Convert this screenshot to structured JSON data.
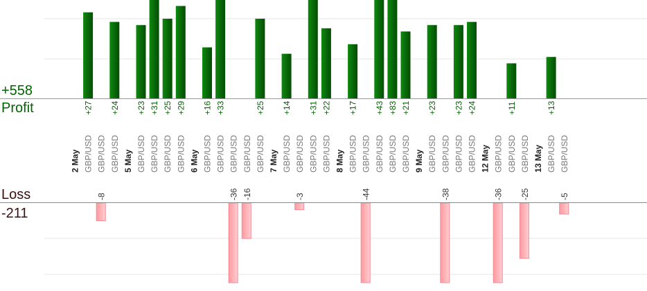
{
  "summary": {
    "profit_total": "+558",
    "profit_label": "Profit",
    "loss_label": "Loss",
    "loss_total": "-211"
  },
  "colors": {
    "profit_bar": "#0a6a0a",
    "profit_text": "#006400",
    "loss_bar": "#ffb3b8",
    "loss_text": "#333333",
    "date_text": "#222222",
    "pair_text": "#777777",
    "grid": "#e6e6e6",
    "axis": "#999999"
  },
  "chart_data": {
    "type": "bar",
    "series": [
      {
        "name": "Profit",
        "color": "#0a6a0a"
      },
      {
        "name": "Loss",
        "color": "#ffb3b8"
      }
    ],
    "categories": [
      {
        "label": "2 May",
        "kind": "date"
      },
      {
        "label": "GBP/USD",
        "kind": "trade",
        "profit": 27,
        "profit_label": "+27"
      },
      {
        "label": "GBP/USD",
        "kind": "trade",
        "loss": -8,
        "loss_label": "-8"
      },
      {
        "label": "GBP/USD",
        "kind": "trade",
        "profit": 24,
        "profit_label": "+24"
      },
      {
        "label": "5 May",
        "kind": "date"
      },
      {
        "label": "GBP/USD",
        "kind": "trade",
        "profit": 23,
        "profit_label": "+23"
      },
      {
        "label": "GBP/USD",
        "kind": "trade",
        "profit": 31,
        "profit_label": "+31"
      },
      {
        "label": "GBP/USD",
        "kind": "trade",
        "profit": 25,
        "profit_label": "+25"
      },
      {
        "label": "GBP/USD",
        "kind": "trade",
        "profit": 29,
        "profit_label": "+29"
      },
      {
        "label": "6 May",
        "kind": "date"
      },
      {
        "label": "GBP/USD",
        "kind": "trade",
        "profit": 16,
        "profit_label": "+16"
      },
      {
        "label": "GBP/USD",
        "kind": "trade",
        "profit": 33,
        "profit_label": "+33"
      },
      {
        "label": "GBP/USD",
        "kind": "trade",
        "loss": -36,
        "loss_label": "-36"
      },
      {
        "label": "GBP/USD",
        "kind": "trade",
        "loss": -16,
        "loss_label": "-16"
      },
      {
        "label": "GBP/USD",
        "kind": "trade",
        "profit": 25,
        "profit_label": "+25"
      },
      {
        "label": "7 May",
        "kind": "date"
      },
      {
        "label": "GBP/USD",
        "kind": "trade",
        "profit": 14,
        "profit_label": "+14"
      },
      {
        "label": "GBP/USD",
        "kind": "trade",
        "loss": -3,
        "loss_label": "-3"
      },
      {
        "label": "GBP/USD",
        "kind": "trade",
        "profit": 31,
        "profit_label": "+31"
      },
      {
        "label": "GBP/USD",
        "kind": "trade",
        "profit": 22,
        "profit_label": "+22"
      },
      {
        "label": "8 May",
        "kind": "date"
      },
      {
        "label": "GBP/USD",
        "kind": "trade",
        "profit": 17,
        "profit_label": "+17"
      },
      {
        "label": "GBP/USD",
        "kind": "trade",
        "loss": -44,
        "loss_label": "-44"
      },
      {
        "label": "GBP/USD",
        "kind": "trade",
        "profit": 43,
        "profit_label": "+43"
      },
      {
        "label": "GBP/USD",
        "kind": "trade",
        "profit": 83,
        "profit_label": "+83"
      },
      {
        "label": "GBP/USD",
        "kind": "trade",
        "profit": 21,
        "profit_label": "+21"
      },
      {
        "label": "9 May",
        "kind": "date"
      },
      {
        "label": "GBP/USD",
        "kind": "trade",
        "profit": 23,
        "profit_label": "+23"
      },
      {
        "label": "GBP/USD",
        "kind": "trade",
        "loss": -38,
        "loss_label": "-38"
      },
      {
        "label": "GBP/USD",
        "kind": "trade",
        "profit": 23,
        "profit_label": "+23"
      },
      {
        "label": "GBP/USD",
        "kind": "trade",
        "profit": 24,
        "profit_label": "+24"
      },
      {
        "label": "12 May",
        "kind": "date"
      },
      {
        "label": "GBP/USD",
        "kind": "trade",
        "loss": -36,
        "loss_label": "-36"
      },
      {
        "label": "GBP/USD",
        "kind": "trade",
        "profit": 11,
        "profit_label": "+11"
      },
      {
        "label": "GBP/USD",
        "kind": "trade",
        "loss": -25,
        "loss_label": "-25"
      },
      {
        "label": "13 May",
        "kind": "date"
      },
      {
        "label": "GBP/USD",
        "kind": "trade",
        "profit": 13,
        "profit_label": "+13"
      },
      {
        "label": "GBP/USD",
        "kind": "trade",
        "loss": -5,
        "loss_label": "-5"
      }
    ],
    "profit_axis_range": [
      0,
      25
    ],
    "loss_axis_range": [
      -36,
      0
    ],
    "grid": true,
    "legend": "none"
  }
}
